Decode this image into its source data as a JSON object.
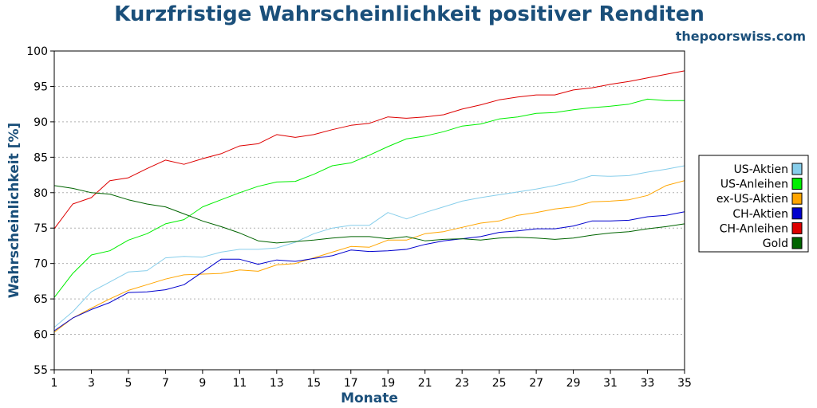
{
  "chart_data": {
    "type": "line",
    "title": "Kurzfristige Wahrscheinlichkeit positiver Renditen",
    "watermark": "thepoorswiss.com",
    "xlabel": "Monate",
    "ylabel": "Wahrscheinlichkeit [%]",
    "xlim": [
      1,
      35
    ],
    "ylim": [
      55,
      100
    ],
    "xticks": [
      1,
      3,
      5,
      7,
      9,
      11,
      13,
      15,
      17,
      19,
      21,
      23,
      25,
      27,
      29,
      31,
      33,
      35
    ],
    "yticks": [
      55,
      60,
      65,
      70,
      75,
      80,
      85,
      90,
      95,
      100
    ],
    "grid": "horizontal dotted",
    "legend_position": "right",
    "x": [
      1,
      2,
      3,
      4,
      5,
      6,
      7,
      8,
      9,
      10,
      11,
      12,
      13,
      14,
      15,
      16,
      17,
      18,
      19,
      20,
      21,
      22,
      23,
      24,
      25,
      26,
      27,
      28,
      29,
      30,
      31,
      32,
      33,
      34,
      35
    ],
    "series": [
      {
        "name": "US-Aktien",
        "color": "#87ceeb",
        "values": [
          61.0,
          63.2,
          66.0,
          67.4,
          68.8,
          69.0,
          70.8,
          71.0,
          70.9,
          71.6,
          72.0,
          72.0,
          72.2,
          73.0,
          74.2,
          75.0,
          75.4,
          75.4,
          77.2,
          76.3,
          77.2,
          78.0,
          78.8,
          79.3,
          79.7,
          80.1,
          80.5,
          81.0,
          81.6,
          82.4,
          82.3,
          82.4,
          82.9,
          83.3,
          83.8
        ]
      },
      {
        "name": "US-Anleihen",
        "color": "#00ee00",
        "values": [
          65.2,
          68.6,
          71.2,
          71.8,
          73.3,
          74.2,
          75.6,
          76.2,
          78.0,
          79.0,
          80.0,
          80.9,
          81.5,
          81.6,
          82.6,
          83.8,
          84.2,
          85.3,
          86.5,
          87.6,
          88.0,
          88.6,
          89.4,
          89.7,
          90.4,
          90.7,
          91.2,
          91.3,
          91.7,
          92.0,
          92.2,
          92.5,
          93.2,
          93.0,
          93.0
        ]
      },
      {
        "name": "ex-US-Aktien",
        "color": "#ffa500",
        "values": [
          60.3,
          62.3,
          63.7,
          65.0,
          66.2,
          67.0,
          67.8,
          68.4,
          68.5,
          68.6,
          69.1,
          68.9,
          69.8,
          70.0,
          70.8,
          71.6,
          72.4,
          72.3,
          73.3,
          73.3,
          74.2,
          74.5,
          75.1,
          75.7,
          76.0,
          76.8,
          77.2,
          77.7,
          78.0,
          78.7,
          78.8,
          79.0,
          79.6,
          81.0,
          81.7
        ]
      },
      {
        "name": "CH-Aktien",
        "color": "#0000cd",
        "values": [
          60.5,
          62.3,
          63.5,
          64.5,
          65.9,
          66.0,
          66.3,
          67.0,
          68.8,
          70.6,
          70.6,
          69.9,
          70.5,
          70.3,
          70.7,
          71.1,
          71.9,
          71.7,
          71.8,
          72.0,
          72.7,
          73.2,
          73.5,
          73.8,
          74.4,
          74.6,
          74.9,
          74.9,
          75.3,
          76.0,
          76.0,
          76.1,
          76.6,
          76.8,
          77.3
        ]
      },
      {
        "name": "CH-Anleihen",
        "color": "#dd0000",
        "values": [
          74.9,
          78.4,
          79.3,
          81.7,
          82.1,
          83.4,
          84.6,
          84.0,
          84.8,
          85.5,
          86.6,
          86.9,
          88.2,
          87.8,
          88.2,
          88.9,
          89.5,
          89.8,
          90.7,
          90.5,
          90.7,
          91.0,
          91.8,
          92.4,
          93.1,
          93.5,
          93.8,
          93.8,
          94.5,
          94.8,
          95.3,
          95.7,
          96.2,
          96.7,
          97.2
        ]
      },
      {
        "name": "Gold",
        "color": "#006400",
        "values": [
          81.0,
          80.6,
          80.0,
          79.8,
          79.0,
          78.4,
          78.0,
          77.0,
          76.0,
          75.2,
          74.3,
          73.2,
          72.9,
          73.1,
          73.3,
          73.6,
          73.8,
          73.8,
          73.5,
          73.8,
          73.2,
          73.4,
          73.5,
          73.3,
          73.6,
          73.7,
          73.6,
          73.4,
          73.6,
          74.0,
          74.3,
          74.5,
          74.9,
          75.2,
          75.6
        ]
      }
    ]
  }
}
